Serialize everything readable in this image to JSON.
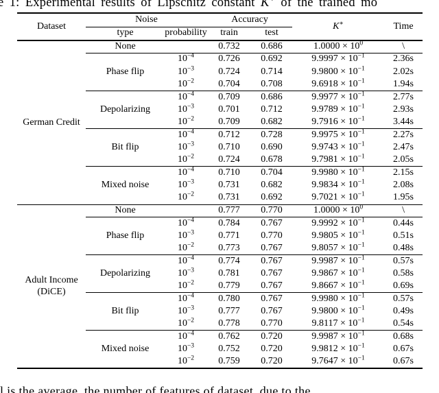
{
  "page": {
    "background": "#ffffff",
    "text_color": "#000000"
  },
  "title": {
    "visible_text_before_k": "e 1: Experimental results of Lipschitz constant ",
    "k": "K",
    "k_sup": "∗",
    "visible_text_after_k": " of the trained mo"
  },
  "table": {
    "header": {
      "dataset": "Dataset",
      "noise": "Noise",
      "accuracy": "Accuracy",
      "type": "type",
      "probability": "probability",
      "train": "train",
      "test": "test",
      "k": "K",
      "k_sup": "∗",
      "time": "Time"
    },
    "sections": [
      {
        "dataset_lines": [
          "German Credit"
        ],
        "none_row": {
          "type": "None",
          "probability": "",
          "train": "0.732",
          "test": "0.686",
          "k_value": "1.0000 × 10^0",
          "time": "\\"
        },
        "groups": [
          {
            "type": "Phase flip",
            "rows": [
              {
                "probability": "10^-4",
                "train": "0.726",
                "test": "0.692",
                "k_value": "9.9997 × 10^-1",
                "time": "2.36s"
              },
              {
                "probability": "10^-3",
                "train": "0.724",
                "test": "0.714",
                "k_value": "9.9800 × 10^-1",
                "time": "2.02s"
              },
              {
                "probability": "10^-2",
                "train": "0.704",
                "test": "0.708",
                "k_value": "9.6918 × 10^-1",
                "time": "1.94s"
              }
            ]
          },
          {
            "type": "Depolarizing",
            "rows": [
              {
                "probability": "10^-4",
                "train": "0.709",
                "test": "0.686",
                "k_value": "9.9977 × 10^-1",
                "time": "2.77s"
              },
              {
                "probability": "10^-3",
                "train": "0.701",
                "test": "0.712",
                "k_value": "9.9789 × 10^-1",
                "time": "2.93s"
              },
              {
                "probability": "10^-2",
                "train": "0.709",
                "test": "0.682",
                "k_value": "9.7916 × 10^-1",
                "time": "3.44s"
              }
            ]
          },
          {
            "type": "Bit flip",
            "rows": [
              {
                "probability": "10^-4",
                "train": "0.712",
                "test": "0.728",
                "k_value": "9.9975 × 10^-1",
                "time": "2.27s"
              },
              {
                "probability": "10^-3",
                "train": "0.710",
                "test": "0.690",
                "k_value": "9.9743 × 10^-1",
                "time": "2.47s"
              },
              {
                "probability": "10^-2",
                "train": "0.724",
                "test": "0.678",
                "k_value": "9.7981 × 10^-1",
                "time": "2.05s"
              }
            ]
          },
          {
            "type": "Mixed noise",
            "rows": [
              {
                "probability": "10^-4",
                "train": "0.710",
                "test": "0.704",
                "k_value": "9.9980 × 10^-1",
                "time": "2.15s"
              },
              {
                "probability": "10^-3",
                "train": "0.731",
                "test": "0.682",
                "k_value": "9.9834 × 10^-1",
                "time": "2.08s"
              },
              {
                "probability": "10^-2",
                "train": "0.731",
                "test": "0.692",
                "k_value": "9.7021 × 10^-1",
                "time": "1.95s"
              }
            ]
          }
        ]
      },
      {
        "dataset_lines": [
          "Adult Income",
          "(DiCE)"
        ],
        "none_row": {
          "type": "None",
          "probability": "",
          "train": "0.777",
          "test": "0.770",
          "k_value": "1.0000 × 10^0",
          "time": "\\"
        },
        "groups": [
          {
            "type": "Phase flip",
            "rows": [
              {
                "probability": "10^-4",
                "train": "0.784",
                "test": "0.767",
                "k_value": "9.9992 × 10^-1",
                "time": "0.44s"
              },
              {
                "probability": "10^-3",
                "train": "0.771",
                "test": "0.770",
                "k_value": "9.9805 × 10^-1",
                "time": "0.51s"
              },
              {
                "probability": "10^-2",
                "train": "0.773",
                "test": "0.767",
                "k_value": "9.8057 × 10^-1",
                "time": "0.48s"
              }
            ]
          },
          {
            "type": "Depolarizing",
            "rows": [
              {
                "probability": "10^-4",
                "train": "0.774",
                "test": "0.767",
                "k_value": "9.9987 × 10^-1",
                "time": "0.57s"
              },
              {
                "probability": "10^-3",
                "train": "0.781",
                "test": "0.767",
                "k_value": "9.9867 × 10^-1",
                "time": "0.58s"
              },
              {
                "probability": "10^-2",
                "train": "0.779",
                "test": "0.767",
                "k_value": "9.8667 × 10^-1",
                "time": "0.69s"
              }
            ]
          },
          {
            "type": "Bit flip",
            "rows": [
              {
                "probability": "10^-4",
                "train": "0.780",
                "test": "0.767",
                "k_value": "9.9980 × 10^-1",
                "time": "0.57s"
              },
              {
                "probability": "10^-3",
                "train": "0.777",
                "test": "0.767",
                "k_value": "9.9800 × 10^-1",
                "time": "0.49s"
              },
              {
                "probability": "10^-2",
                "train": "0.778",
                "test": "0.770",
                "k_value": "9.8117 × 10^-1",
                "time": "0.54s"
              }
            ]
          },
          {
            "type": "Mixed noise",
            "rows": [
              {
                "probability": "10^-4",
                "train": "0.762",
                "test": "0.720",
                "k_value": "9.9987 × 10^-1",
                "time": "0.68s"
              },
              {
                "probability": "10^-3",
                "train": "0.752",
                "test": "0.720",
                "k_value": "9.9812 × 10^-1",
                "time": "0.67s"
              },
              {
                "probability": "10^-2",
                "train": "0.759",
                "test": "0.720",
                "k_value": "9.7647 × 10^-1",
                "time": "0.67s"
              }
            ]
          }
        ]
      }
    ]
  },
  "footnote": {
    "visible_partial_text": "l is the average,   the number of features of dataset, due to the"
  }
}
